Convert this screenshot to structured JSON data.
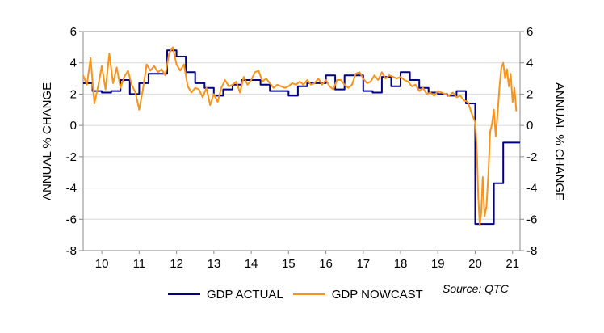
{
  "chart_data": {
    "type": "line",
    "ylabel_left": "ANNUAL % CHANGE",
    "ylabel_right": "ANNUAL % CHANGE",
    "ylim": [
      -8,
      6
    ],
    "yticks": [
      6,
      4,
      2,
      0,
      -2,
      -4,
      -6,
      -8
    ],
    "xlim": [
      2009.5,
      2021.2
    ],
    "xticks": [
      {
        "label": "10",
        "x": 2010.0
      },
      {
        "label": "11",
        "x": 2011.0
      },
      {
        "label": "12",
        "x": 2012.0
      },
      {
        "label": "13",
        "x": 2013.0
      },
      {
        "label": "14",
        "x": 2014.0
      },
      {
        "label": "15",
        "x": 2015.0
      },
      {
        "label": "16",
        "x": 2016.0
      },
      {
        "label": "17",
        "x": 2017.0
      },
      {
        "label": "18",
        "x": 2018.0
      },
      {
        "label": "19",
        "x": 2019.0
      },
      {
        "label": "20",
        "x": 2020.0
      },
      {
        "label": "21",
        "x": 2021.0
      }
    ],
    "grid": "horizontal",
    "legend_position": "bottom",
    "series": [
      {
        "name": "GDP ACTUAL",
        "color": "#000080",
        "style": "step",
        "x": [
          2009.5,
          2009.75,
          2010.0,
          2010.25,
          2010.5,
          2010.75,
          2011.0,
          2011.25,
          2011.5,
          2011.75,
          2012.0,
          2012.25,
          2012.5,
          2012.75,
          2013.0,
          2013.25,
          2013.5,
          2013.75,
          2014.0,
          2014.25,
          2014.5,
          2014.75,
          2015.0,
          2015.25,
          2015.5,
          2015.75,
          2016.0,
          2016.25,
          2016.5,
          2016.75,
          2017.0,
          2017.25,
          2017.5,
          2017.75,
          2018.0,
          2018.25,
          2018.5,
          2018.75,
          2019.0,
          2019.25,
          2019.5,
          2019.75,
          2020.0,
          2020.25,
          2020.5,
          2020.75,
          2021.0
        ],
        "y": [
          2.7,
          2.2,
          2.1,
          2.2,
          2.9,
          2.0,
          2.7,
          3.3,
          3.3,
          4.8,
          4.4,
          3.4,
          2.7,
          2.4,
          1.9,
          2.3,
          2.6,
          2.9,
          2.9,
          2.6,
          2.2,
          2.2,
          1.9,
          2.5,
          2.7,
          2.7,
          3.2,
          2.3,
          3.2,
          3.2,
          2.2,
          2.1,
          3.1,
          2.5,
          3.4,
          2.9,
          2.4,
          2.1,
          2.0,
          1.9,
          2.2,
          1.4,
          -6.3,
          -6.3,
          -3.7,
          -1.1,
          -1.1
        ]
      },
      {
        "name": "GDP NOWCAST",
        "color": "#F7941D",
        "style": "line",
        "x": [
          2009.5,
          2009.6,
          2009.7,
          2009.8,
          2009.9,
          2010.0,
          2010.1,
          2010.2,
          2010.3,
          2010.4,
          2010.5,
          2010.6,
          2010.7,
          2010.8,
          2010.9,
          2011.0,
          2011.1,
          2011.2,
          2011.3,
          2011.4,
          2011.5,
          2011.6,
          2011.7,
          2011.8,
          2011.9,
          2012.0,
          2012.1,
          2012.2,
          2012.3,
          2012.4,
          2012.5,
          2012.6,
          2012.7,
          2012.8,
          2012.9,
          2013.0,
          2013.1,
          2013.2,
          2013.3,
          2013.4,
          2013.5,
          2013.6,
          2013.7,
          2013.8,
          2013.9,
          2014.0,
          2014.1,
          2014.2,
          2014.3,
          2014.4,
          2014.5,
          2014.6,
          2014.7,
          2014.8,
          2014.9,
          2015.0,
          2015.1,
          2015.2,
          2015.3,
          2015.4,
          2015.5,
          2015.6,
          2015.7,
          2015.8,
          2015.9,
          2016.0,
          2016.1,
          2016.2,
          2016.3,
          2016.4,
          2016.5,
          2016.6,
          2016.7,
          2016.8,
          2016.9,
          2017.0,
          2017.1,
          2017.2,
          2017.3,
          2017.4,
          2017.5,
          2017.6,
          2017.7,
          2017.8,
          2017.9,
          2018.0,
          2018.1,
          2018.2,
          2018.3,
          2018.4,
          2018.5,
          2018.6,
          2018.7,
          2018.8,
          2018.9,
          2019.0,
          2019.1,
          2019.2,
          2019.3,
          2019.4,
          2019.5,
          2019.6,
          2019.7,
          2019.8,
          2019.9,
          2020.0,
          2020.02,
          2020.05,
          2020.08,
          2020.12,
          2020.16,
          2020.2,
          2020.25,
          2020.3,
          2020.35,
          2020.4,
          2020.45,
          2020.5,
          2020.55,
          2020.6,
          2020.65,
          2020.7,
          2020.75,
          2020.8,
          2020.85,
          2020.9,
          2020.95,
          2021.0,
          2021.05,
          2021.1
        ],
        "y": [
          3.2,
          2.6,
          4.3,
          1.4,
          2.5,
          3.8,
          2.3,
          4.6,
          2.7,
          3.7,
          2.4,
          3.1,
          3.5,
          2.6,
          2.1,
          1.0,
          2.3,
          3.9,
          3.5,
          3.8,
          3.4,
          3.6,
          3.2,
          4.6,
          5.0,
          3.9,
          3.5,
          3.9,
          2.5,
          2.1,
          2.4,
          2.3,
          1.8,
          2.4,
          1.3,
          2.0,
          1.5,
          2.4,
          2.9,
          2.5,
          2.6,
          2.8,
          2.1,
          3.1,
          2.6,
          2.9,
          3.4,
          3.5,
          2.8,
          3.0,
          2.7,
          2.4,
          2.6,
          2.5,
          2.4,
          2.5,
          2.7,
          2.6,
          2.8,
          2.6,
          2.9,
          2.6,
          2.7,
          3.0,
          2.6,
          2.9,
          2.5,
          2.3,
          2.9,
          2.9,
          2.6,
          2.4,
          2.6,
          3.3,
          3.4,
          3.0,
          2.7,
          2.8,
          3.2,
          2.9,
          3.4,
          3.0,
          3.2,
          3.1,
          3.0,
          3.1,
          2.9,
          2.8,
          2.5,
          2.6,
          2.2,
          2.4,
          2.0,
          2.1,
          1.9,
          2.2,
          2.1,
          2.0,
          1.9,
          2.1,
          1.8,
          1.9,
          1.6,
          1.5,
          0.8,
          0.2,
          -0.5,
          -2.0,
          -4.5,
          -6.4,
          -5.6,
          -3.3,
          -5.8,
          -5.2,
          -3.2,
          -0.4,
          0.1,
          1.0,
          -0.7,
          0.8,
          2.5,
          3.7,
          4.0,
          3.0,
          3.6,
          2.5,
          3.3,
          1.5,
          2.4,
          0.9
        ]
      }
    ],
    "source": "Source: QTC"
  }
}
